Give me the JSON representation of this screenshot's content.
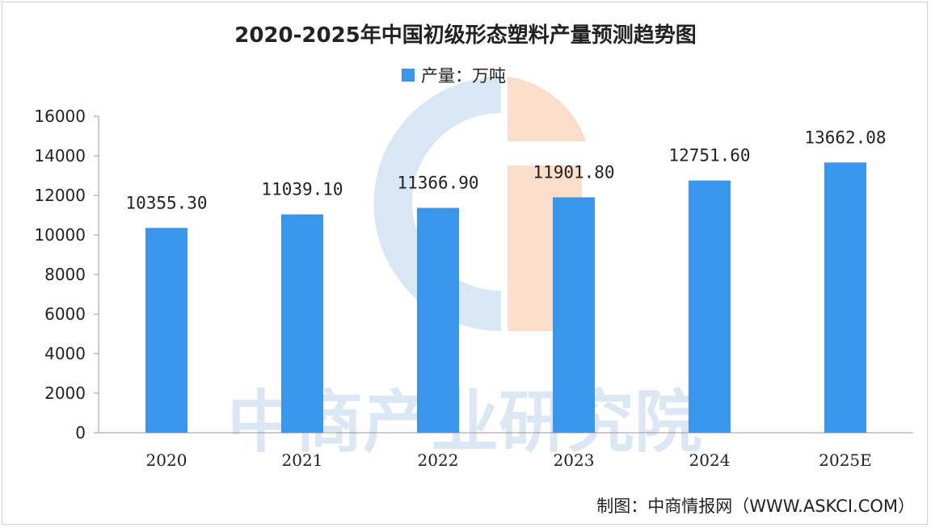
{
  "chart_data": {
    "type": "bar",
    "title": "2020-2025年中国初级形态塑料产量预测趋势图",
    "categories": [
      "2020",
      "2021",
      "2022",
      "2023",
      "2024",
      "2025E"
    ],
    "series": [
      {
        "name": "产量：万吨",
        "values": [
          10355.3,
          11039.1,
          11366.9,
          11901.8,
          12751.6,
          13662.08
        ],
        "labels": [
          "10355.30",
          "11039.10",
          "11366.90",
          "11901.80",
          "12751.60",
          "13662.08"
        ],
        "color": "#3a96ea"
      }
    ],
    "yticks": [
      "0",
      "2000",
      "4000",
      "6000",
      "8000",
      "10000",
      "12000",
      "14000",
      "16000"
    ],
    "ylim": [
      0,
      16000
    ],
    "grid": false,
    "legend": "top-center"
  },
  "source": "制图：中商情报网（WWW.ASKCI.COM）",
  "watermark": {
    "text": "中商产业研究院",
    "colors": {
      "blue": "#b9d3ec",
      "orange": "#f6c6a9"
    }
  }
}
